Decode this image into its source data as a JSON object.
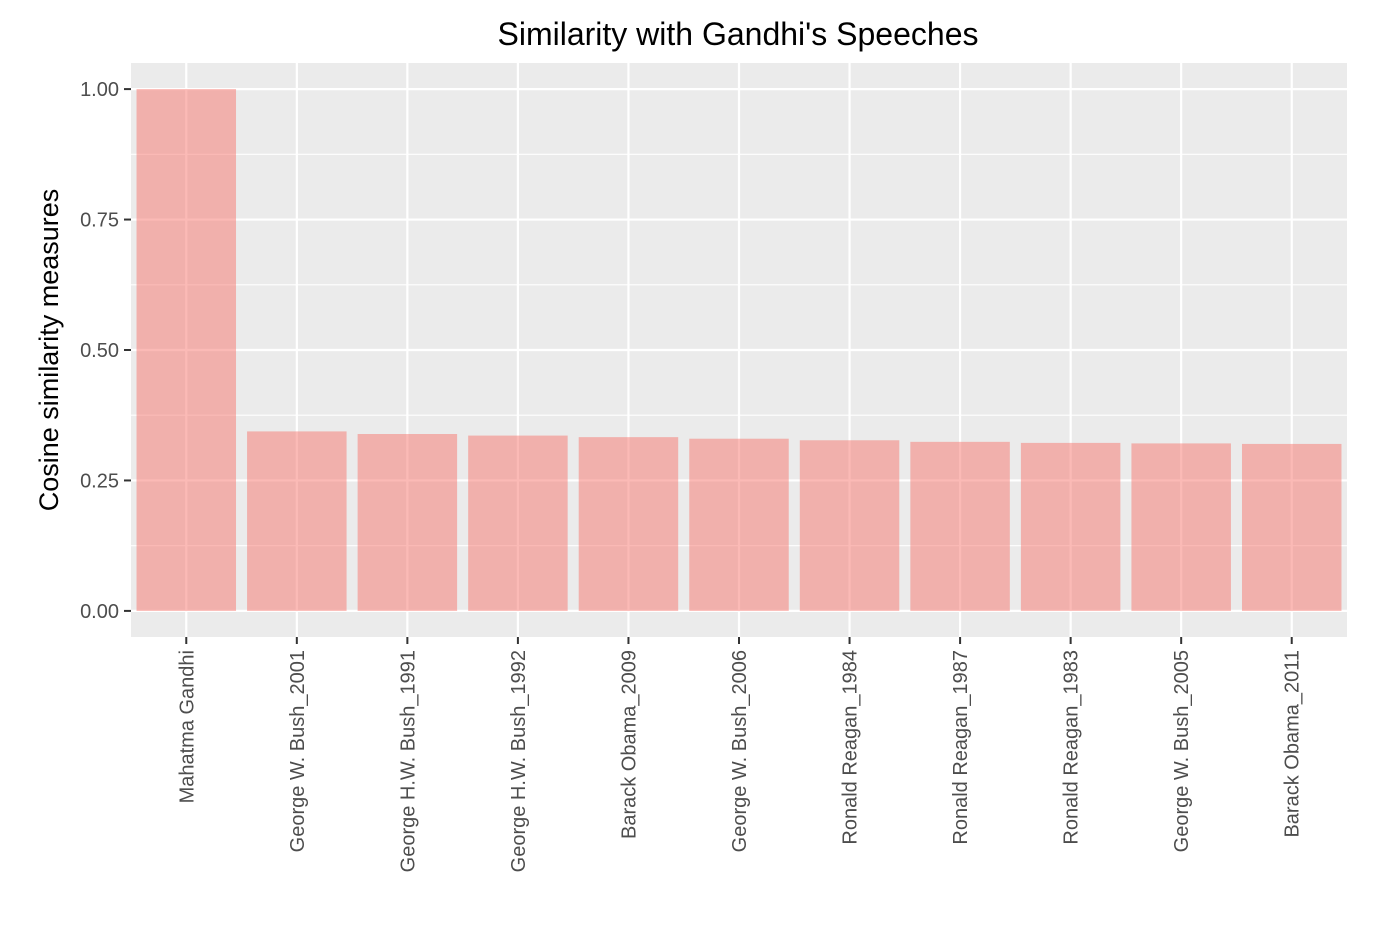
{
  "chart_data": {
    "type": "bar",
    "title": "Similarity with Gandhi's Speeches",
    "xlabel": "",
    "ylabel": "Cosine similarity measures",
    "categories": [
      "Mahatma Gandhi",
      "George W. Bush_2001",
      "George H.W. Bush_1991",
      "George H.W. Bush_1992",
      "Barack Obama_2009",
      "George W. Bush_2006",
      "Ronald Reagan_1984",
      "Ronald Reagan_1987",
      "Ronald Reagan_1983",
      "George W. Bush_2005",
      "Barack Obama_2011"
    ],
    "values": [
      1.0,
      0.344,
      0.339,
      0.336,
      0.333,
      0.33,
      0.327,
      0.324,
      0.322,
      0.321,
      0.32
    ],
    "ylim": [
      -0.05,
      1.05
    ],
    "yticks": [
      0.0,
      0.25,
      0.5,
      0.75,
      1.0
    ],
    "ytick_labels": [
      "0.00",
      "0.25",
      "0.50",
      "0.75",
      "1.00"
    ],
    "grid": true,
    "legend": "none",
    "colors": {
      "bar": "#f8766d",
      "bar_opacity": 0.5,
      "panel_background": "#ebebeb",
      "grid_major": "#ffffff",
      "grid_minor": "#ffffff"
    }
  }
}
